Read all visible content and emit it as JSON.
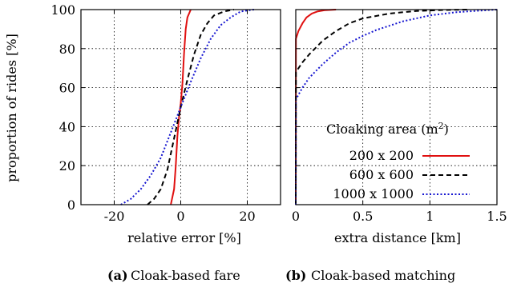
{
  "panels": [
    {
      "caption_label": "(a)",
      "caption_text": "Cloak-based fare",
      "xlabel": "relative error [%]",
      "ylabel": "proportion of rides [%]"
    },
    {
      "caption_label": "(b)",
      "caption_text": "Cloak-based matching",
      "xlabel": "extra distance [km]",
      "legend_title": "Cloaking area (m",
      "legend_title_sup": "2",
      "legend_title_end": ")"
    }
  ],
  "chart_data": [
    {
      "type": "line",
      "title": "",
      "xlabel": "relative error [%]",
      "ylabel": "proportion of rides [%]",
      "xlim": [
        -30,
        30
      ],
      "ylim": [
        0,
        100
      ],
      "xticks": [
        -20,
        0,
        20
      ],
      "yticks": [
        0,
        20,
        40,
        60,
        80,
        100
      ],
      "grid": true,
      "series": [
        {
          "name": "200 x 200",
          "color": "#e01010",
          "dash": "solid",
          "x": [
            -3,
            -2,
            -1.5,
            -1,
            -0.5,
            0,
            0.5,
            1,
            1.5,
            2,
            3
          ],
          "y": [
            0,
            8,
            20,
            35,
            45,
            52,
            62,
            78,
            90,
            96,
            100
          ]
        },
        {
          "name": "600 x 600",
          "color": "#000000",
          "dash": "dashed",
          "x": [
            -10,
            -8,
            -6,
            -4,
            -2,
            0,
            2,
            4,
            6,
            8,
            10,
            13,
            16
          ],
          "y": [
            0,
            3,
            8,
            18,
            34,
            50,
            64,
            77,
            87,
            93,
            97,
            99,
            100
          ]
        },
        {
          "name": "1000 x 1000",
          "color": "#1515d0",
          "dash": "dotted",
          "x": [
            -18,
            -15,
            -12,
            -9,
            -6,
            -3,
            0,
            3,
            6,
            9,
            12,
            15,
            18,
            22
          ],
          "y": [
            0,
            3,
            8,
            15,
            24,
            37,
            50,
            63,
            75,
            85,
            92,
            96,
            99,
            100
          ]
        }
      ]
    },
    {
      "type": "line",
      "title": "",
      "xlabel": "extra distance [km]",
      "ylabel": "",
      "xlim": [
        0,
        1.5
      ],
      "ylim": [
        0,
        100
      ],
      "xticks": [
        0,
        0.5,
        1,
        1.5
      ],
      "xtick_labels": [
        "0",
        "0.5",
        "1",
        "1.5"
      ],
      "yticks": [
        0,
        20,
        40,
        60,
        80,
        100
      ],
      "grid": true,
      "legend": "center-right",
      "series": [
        {
          "name": "200 x 200",
          "color": "#e01010",
          "dash": "solid",
          "x": [
            0,
            0.001,
            0.02,
            0.05,
            0.08,
            0.12,
            0.16,
            0.22,
            0.3
          ],
          "y": [
            0,
            85,
            89,
            93,
            96,
            98,
            99,
            99.7,
            100
          ]
        },
        {
          "name": "600 x 600",
          "color": "#000000",
          "dash": "dashed",
          "x": [
            0,
            0.001,
            0.05,
            0.1,
            0.2,
            0.3,
            0.4,
            0.5,
            0.7,
            0.9,
            1.1,
            1.3
          ],
          "y": [
            0,
            68,
            73,
            77,
            84,
            89,
            93,
            95.5,
            98,
            99.3,
            99.8,
            100
          ]
        },
        {
          "name": "1000 x 1000",
          "color": "#1515d0",
          "dash": "dotted",
          "x": [
            0,
            0.001,
            0.05,
            0.1,
            0.2,
            0.3,
            0.4,
            0.5,
            0.6,
            0.8,
            1.0,
            1.2,
            1.4,
            1.5
          ],
          "y": [
            0,
            54,
            60,
            65,
            72,
            78,
            83,
            86.5,
            89.5,
            94,
            97,
            98.7,
            99.6,
            100
          ]
        }
      ]
    }
  ]
}
